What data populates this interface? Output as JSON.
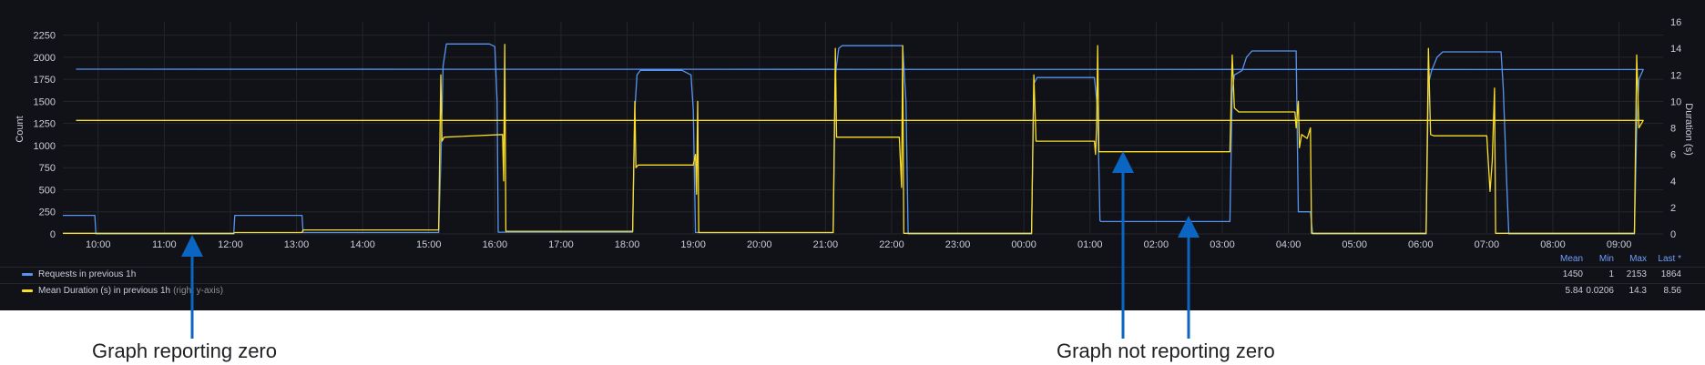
{
  "chart_data": {
    "type": "line",
    "x_ticks": [
      "10:00",
      "11:00",
      "12:00",
      "13:00",
      "14:00",
      "15:00",
      "16:00",
      "17:00",
      "18:00",
      "19:00",
      "20:00",
      "21:00",
      "22:00",
      "23:00",
      "00:00",
      "01:00",
      "02:00",
      "03:00",
      "04:00",
      "05:00",
      "06:00",
      "07:00",
      "08:00",
      "09:00"
    ],
    "x_start": "09:28",
    "x_end": "09:40",
    "y_left": {
      "label": "Count",
      "ticks": [
        0,
        250,
        500,
        750,
        1000,
        1250,
        1500,
        1750,
        2000,
        2250
      ],
      "range": [
        0,
        2400
      ]
    },
    "y_right": {
      "label": "Duration (s)",
      "ticks": [
        0,
        2,
        4,
        6,
        8,
        10,
        12,
        14,
        16
      ],
      "range": [
        0,
        16
      ]
    },
    "series": [
      {
        "name": "Requests in previous 1h",
        "axis": "left",
        "color": "#5794f2",
        "points": [
          [
            "09:28",
            210
          ],
          [
            "09:57",
            210
          ],
          [
            "09:58",
            0
          ],
          [
            "12:03",
            0
          ],
          [
            "12:04",
            210
          ],
          [
            "13:05",
            210
          ],
          [
            "13:06",
            15
          ],
          [
            "15:09",
            15
          ],
          [
            "15:11",
            800
          ],
          [
            "15:13",
            1900
          ],
          [
            "15:16",
            2150
          ],
          [
            "15:55",
            2150
          ],
          [
            "16:00",
            2120
          ],
          [
            "16:02",
            1500
          ],
          [
            "16:03",
            20
          ],
          [
            "18:05",
            20
          ],
          [
            "18:07",
            1400
          ],
          [
            "18:09",
            1800
          ],
          [
            "18:12",
            1850
          ],
          [
            "18:50",
            1850
          ],
          [
            "18:58",
            1800
          ],
          [
            "19:00",
            1400
          ],
          [
            "19:02",
            15
          ],
          [
            "21:07",
            15
          ],
          [
            "21:09",
            1800
          ],
          [
            "21:12",
            2100
          ],
          [
            "21:15",
            2130
          ],
          [
            "22:10",
            2130
          ],
          [
            "22:13",
            1500
          ],
          [
            "22:15",
            0
          ],
          [
            "00:07",
            0
          ],
          [
            "00:09",
            1700
          ],
          [
            "00:12",
            1770
          ],
          [
            "01:04",
            1770
          ],
          [
            "01:07",
            1400
          ],
          [
            "01:09",
            150
          ],
          [
            "01:10",
            140
          ],
          [
            "03:07",
            140
          ],
          [
            "03:09",
            1600
          ],
          [
            "03:11",
            1800
          ],
          [
            "03:18",
            1850
          ],
          [
            "03:22",
            2000
          ],
          [
            "03:27",
            2070
          ],
          [
            "04:07",
            2070
          ],
          [
            "04:09",
            250
          ],
          [
            "04:20",
            250
          ],
          [
            "04:22",
            0
          ],
          [
            "06:05",
            0
          ],
          [
            "06:07",
            1700
          ],
          [
            "06:10",
            1850
          ],
          [
            "06:15",
            2000
          ],
          [
            "06:20",
            2060
          ],
          [
            "07:13",
            2060
          ],
          [
            "07:15",
            1650
          ],
          [
            "07:18",
            600
          ],
          [
            "07:20",
            0
          ],
          [
            "09:14",
            0
          ],
          [
            "09:16",
            1200
          ],
          [
            "09:18",
            1750
          ],
          [
            "09:22",
            1860
          ],
          [
            "09:40",
            1864
          ]
        ]
      },
      {
        "name": "Mean Duration (s) in previous 1h",
        "axis": "right",
        "suffix": "(right y-axis)",
        "color": "#fade2a",
        "points": [
          [
            "09:28",
            0.05
          ],
          [
            "12:03",
            0.05
          ],
          [
            "12:04",
            0.1
          ],
          [
            "13:05",
            0.1
          ],
          [
            "13:06",
            0.3
          ],
          [
            "15:09",
            0.3
          ],
          [
            "15:11",
            12
          ],
          [
            "15:12",
            7
          ],
          [
            "15:14",
            7.3
          ],
          [
            "16:07",
            7.5
          ],
          [
            "16:08",
            4
          ],
          [
            "16:09",
            14.3
          ],
          [
            "16:10",
            0.2
          ],
          [
            "18:05",
            0.2
          ],
          [
            "18:07",
            10
          ],
          [
            "18:08",
            5
          ],
          [
            "18:10",
            5.2
          ],
          [
            "19:00",
            5.2
          ],
          [
            "19:02",
            6
          ],
          [
            "19:03",
            3
          ],
          [
            "19:04",
            10
          ],
          [
            "19:05",
            0.1
          ],
          [
            "21:07",
            0.1
          ],
          [
            "21:09",
            14
          ],
          [
            "21:10",
            7.3
          ],
          [
            "22:07",
            7.3
          ],
          [
            "22:09",
            3.5
          ],
          [
            "22:10",
            14.2
          ],
          [
            "22:11",
            0.05
          ],
          [
            "00:07",
            0.05
          ],
          [
            "00:09",
            12
          ],
          [
            "00:11",
            7
          ],
          [
            "01:04",
            7
          ],
          [
            "01:05",
            6
          ],
          [
            "01:06",
            8
          ],
          [
            "01:07",
            14.2
          ],
          [
            "01:08",
            6.2
          ],
          [
            "03:07",
            6.2
          ],
          [
            "03:09",
            13.5
          ],
          [
            "03:11",
            9.5
          ],
          [
            "03:15",
            9.2
          ],
          [
            "04:06",
            9.2
          ],
          [
            "04:07",
            8
          ],
          [
            "04:09",
            10
          ],
          [
            "04:10",
            6.5
          ],
          [
            "04:12",
            7.5
          ],
          [
            "04:17",
            7.2
          ],
          [
            "04:20",
            8
          ],
          [
            "04:21",
            0.05
          ],
          [
            "06:05",
            0.05
          ],
          [
            "06:07",
            14
          ],
          [
            "06:09",
            7.5
          ],
          [
            "06:12",
            7.4
          ],
          [
            "07:00",
            7.4
          ],
          [
            "07:03",
            3.2
          ],
          [
            "07:05",
            5.5
          ],
          [
            "07:07",
            11
          ],
          [
            "07:08",
            0.05
          ],
          [
            "09:14",
            0.05
          ],
          [
            "09:16",
            13.5
          ],
          [
            "09:18",
            8
          ],
          [
            "09:22",
            8.56
          ],
          [
            "09:40",
            8.56
          ]
        ]
      }
    ],
    "legend": {
      "placement": "bottom",
      "columns": [
        "Mean",
        "Min",
        "Max",
        "Last *"
      ],
      "rows": [
        {
          "values": [
            "1450",
            "1",
            "2153",
            "1864"
          ]
        },
        {
          "values": [
            "5.84",
            "0.0206",
            "14.3",
            "8.56"
          ]
        }
      ]
    },
    "annotations": [
      {
        "text": "Graph reporting zero",
        "at": "11:30"
      },
      {
        "text": "Graph not reporting zero",
        "at": [
          "01:30",
          "02:30"
        ]
      }
    ],
    "grid": true
  }
}
